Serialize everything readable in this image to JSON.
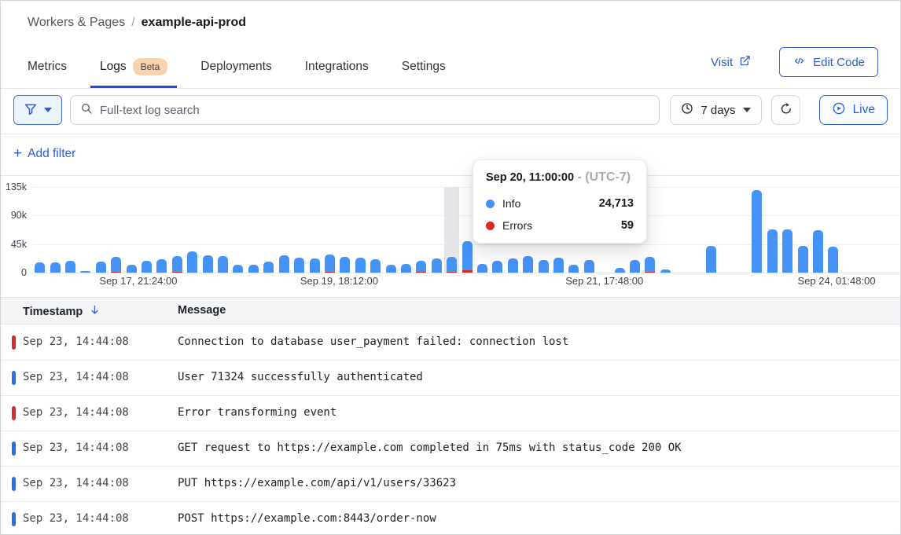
{
  "header": {
    "breadcrumb": {
      "section": "Workers & Pages",
      "separator": "/",
      "current": "example-api-prod"
    },
    "tabs": [
      {
        "label": "Metrics",
        "active": false
      },
      {
        "label": "Logs",
        "badge": "Beta",
        "active": true
      },
      {
        "label": "Deployments",
        "active": false
      },
      {
        "label": "Integrations",
        "active": false
      },
      {
        "label": "Settings",
        "active": false
      }
    ],
    "visit_label": "Visit",
    "edit_code_label": "Edit Code"
  },
  "filter_bar": {
    "search_placeholder": "Full-text log search",
    "time_range_label": "7 days",
    "live_label": "Live"
  },
  "add_filter": {
    "plus": "+",
    "label": "Add filter"
  },
  "tooltip": {
    "title": "Sep 20, 11:00:00",
    "separator": "-",
    "timezone": "(UTC-7)",
    "rows": [
      {
        "label": "Info",
        "value": "24,713",
        "color": "#4693f8"
      },
      {
        "label": "Errors",
        "value": "59",
        "color": "#e02424"
      }
    ]
  },
  "chart_data": {
    "type": "bar",
    "title": "Log volume over time",
    "xlabel": "",
    "ylabel": "",
    "ylim": [
      0,
      135000
    ],
    "grid": true,
    "legend_position": "tooltip",
    "yticks_display": [
      "135k",
      "90k",
      "45k",
      "0"
    ],
    "xticks": [
      {
        "label": "Sep 17, 21:24:00",
        "x": 0.122
      },
      {
        "label": "Sep 19, 18:12:00",
        "x": 0.353
      },
      {
        "label": "Sep 21, 17:48:00",
        "x": 0.658
      },
      {
        "label": "Sep 24, 01:48:00",
        "x": 0.925
      }
    ],
    "series": [
      {
        "name": "Info",
        "color": "#4693f8"
      },
      {
        "name": "Errors",
        "color": "#da2727"
      }
    ],
    "hovered_bin": {
      "time": "Sep 20, 11:00:00",
      "info": 24713,
      "errors": 59
    },
    "bars": [
      {
        "v": 16000
      },
      {
        "v": 16000
      },
      {
        "v": 18000
      },
      {
        "v": 3000
      },
      {
        "v": 17000
      },
      {
        "v": 25000,
        "e": 800
      },
      {
        "v": 12000
      },
      {
        "v": 19000
      },
      {
        "v": 21000
      },
      {
        "v": 26000,
        "e": 800
      },
      {
        "v": 34000
      },
      {
        "v": 27000
      },
      {
        "v": 26000
      },
      {
        "v": 12000
      },
      {
        "v": 13000
      },
      {
        "v": 17000
      },
      {
        "v": 27000
      },
      {
        "v": 24000
      },
      {
        "v": 22000
      },
      {
        "v": 29000,
        "e": 800
      },
      {
        "v": 25000
      },
      {
        "v": 24000
      },
      {
        "v": 21000
      },
      {
        "v": 12000
      },
      {
        "v": 14000
      },
      {
        "v": 19000,
        "e": 800
      },
      {
        "v": 22000
      },
      {
        "v": 24713,
        "e": 59,
        "hover": true
      },
      {
        "v": 50000,
        "e": 3500
      },
      {
        "v": 14000
      },
      {
        "v": 18000
      },
      {
        "v": 22000
      },
      {
        "v": 26000
      },
      {
        "v": 20000
      },
      {
        "v": 23000
      },
      {
        "v": 13000
      },
      {
        "v": 20000
      },
      {
        "v": 0
      },
      {
        "v": 8000
      },
      {
        "v": 20000
      },
      {
        "v": 25000,
        "e": 800
      },
      {
        "v": 5000
      },
      {
        "v": 0
      },
      {
        "v": 0
      },
      {
        "v": 42000
      },
      {
        "v": 0
      },
      {
        "v": 0
      },
      {
        "v": 130000
      },
      {
        "v": 68000
      },
      {
        "v": 68000
      },
      {
        "v": 42000
      },
      {
        "v": 67000
      },
      {
        "v": 41000
      },
      {
        "v": 0
      },
      {
        "v": 0
      },
      {
        "v": 0
      },
      {
        "v": 0
      }
    ]
  },
  "table": {
    "columns": [
      "Timestamp",
      "Message"
    ],
    "sort": {
      "column": "Timestamp",
      "direction": "desc"
    },
    "rows": [
      {
        "severity": "error",
        "timestamp": "Sep 23, 14:44:08",
        "message": "Connection to database user_payment failed: connection lost"
      },
      {
        "severity": "info",
        "timestamp": "Sep 23, 14:44:08",
        "message": "User 71324 successfully authenticated"
      },
      {
        "severity": "error",
        "timestamp": "Sep 23, 14:44:08",
        "message": "Error transforming event"
      },
      {
        "severity": "info",
        "timestamp": "Sep 23, 14:44:08",
        "message": "GET request to https://example.com completed in 75ms with status_code 200 OK"
      },
      {
        "severity": "info",
        "timestamp": "Sep 23, 14:44:08",
        "message": "PUT https://example.com/api/v1/users/33623"
      },
      {
        "severity": "info",
        "timestamp": "Sep 23, 14:44:08",
        "message": "POST https://example.com:8443/order-now"
      }
    ]
  },
  "colors": {
    "accent_blue": "#2b5dd7",
    "bar_blue": "#4693f8",
    "error_red": "#da2727",
    "tab_underline": "#1d4fd7",
    "hover_band": "#e4e6ea",
    "badge_bg": "#f8d3ae"
  }
}
